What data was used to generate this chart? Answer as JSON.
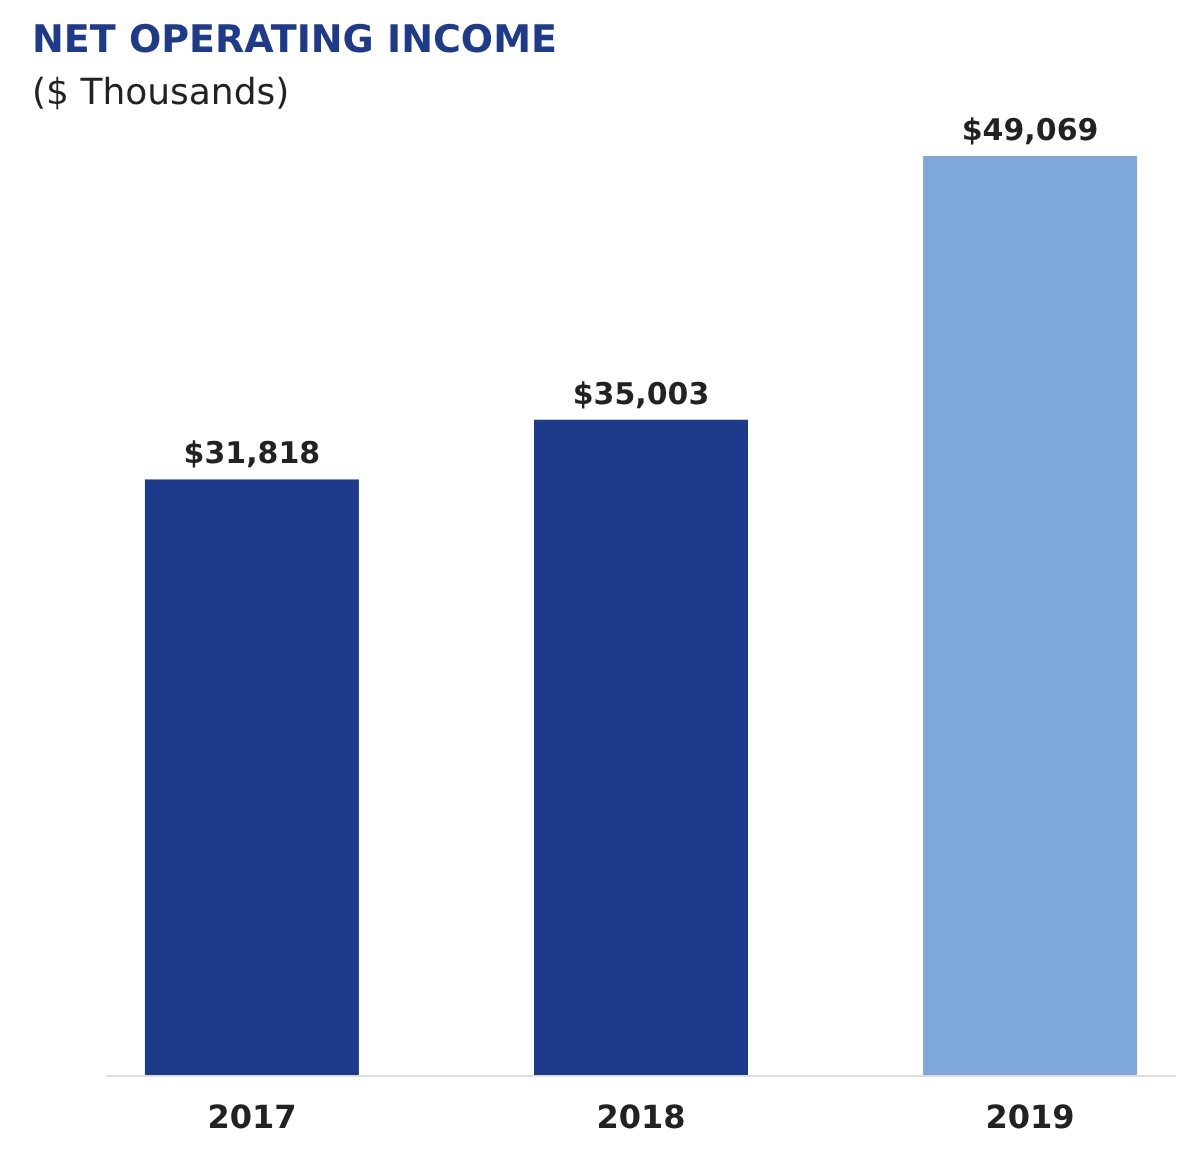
{
  "chart_data": {
    "type": "bar",
    "title": "NET OPERATING INCOME",
    "subtitle": "($ Thousands)",
    "categories": [
      "2017",
      "2018",
      "2019"
    ],
    "values": [
      31818,
      35003,
      49069
    ],
    "colors": [
      "#1e3a8a",
      "#1e3a8a",
      "#7ea8dc"
    ],
    "value_labels": [
      "$31,818",
      "$35,003",
      "$49,069"
    ]
  }
}
